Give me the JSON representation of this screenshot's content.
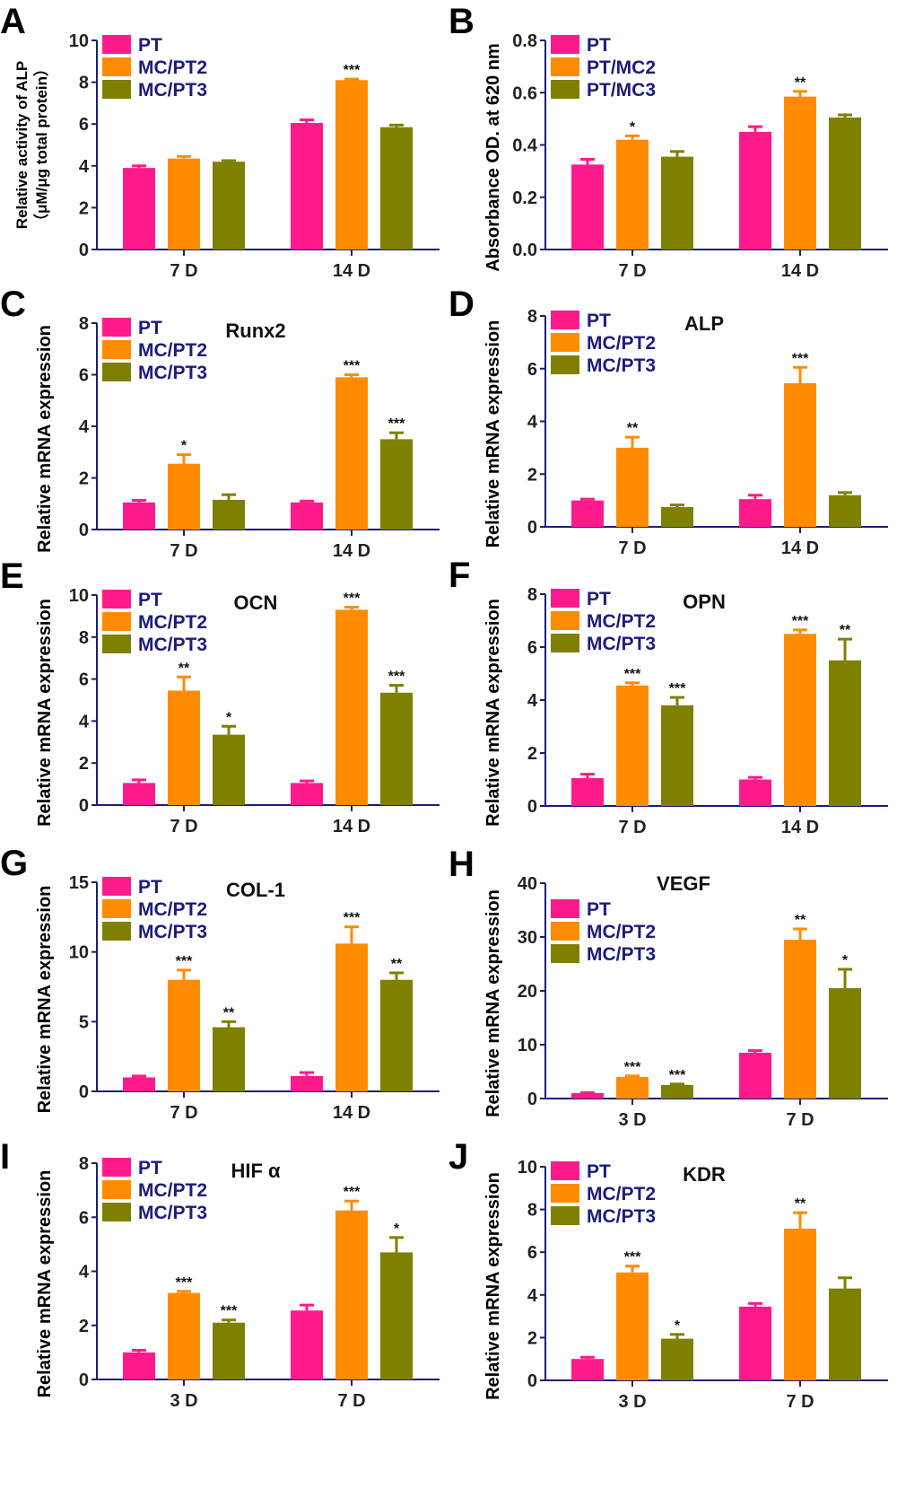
{
  "colors": {
    "PT": "#ff1a8c",
    "MC/PT2": "#ff8c00",
    "MC/PT3": "#808000",
    "axis": "#1c1c7c",
    "legend_text": "#1c1c7c"
  },
  "chart_data": [
    {
      "panel": "A",
      "type": "bar",
      "title": "",
      "ylabel": "Relative activity of ALP",
      "ylabel2": "（μM/μg total protein）",
      "ylim": [
        0,
        10
      ],
      "yticks": [
        "0",
        "2",
        "4",
        "6",
        "8",
        "10"
      ],
      "categories": [
        "7 D",
        "14 D"
      ],
      "series": [
        {
          "name": "PT",
          "values": [
            3.9,
            6.05
          ],
          "errors": [
            0.1,
            0.15
          ],
          "sig": [
            "",
            ""
          ]
        },
        {
          "name": "MC/PT2",
          "values": [
            4.35,
            8.1
          ],
          "errors": [
            0.1,
            0.05
          ],
          "sig": [
            "",
            "***"
          ]
        },
        {
          "name": "MC/PT3",
          "values": [
            4.2,
            5.85
          ],
          "errors": [
            0.05,
            0.1
          ],
          "sig": [
            "",
            ""
          ]
        }
      ],
      "legend": "top-left"
    },
    {
      "panel": "B",
      "type": "bar",
      "title": "",
      "ylabel": "Absorbance OD. at 620 nm",
      "ylim": [
        0,
        0.8
      ],
      "yticks": [
        "0.0",
        "0.2",
        "0.4",
        "0.6",
        "0.8"
      ],
      "categories": [
        "7 D",
        "14 D"
      ],
      "series": [
        {
          "name": "PT",
          "values": [
            0.325,
            0.45
          ],
          "errors": [
            0.02,
            0.02
          ],
          "sig": [
            "",
            ""
          ]
        },
        {
          "name": "PT/MC2",
          "values": [
            0.42,
            0.585
          ],
          "errors": [
            0.015,
            0.02
          ],
          "sig": [
            "*",
            "**"
          ]
        },
        {
          "name": "PT/MC3",
          "values": [
            0.355,
            0.505
          ],
          "errors": [
            0.02,
            0.01
          ],
          "sig": [
            "",
            ""
          ]
        }
      ],
      "legend": "top-left"
    },
    {
      "panel": "C",
      "type": "bar",
      "title": "Runx2",
      "ylabel": "Relative mRNA expression",
      "ylim": [
        0,
        8
      ],
      "yticks": [
        "0",
        "2",
        "4",
        "6",
        "8"
      ],
      "categories": [
        "7 D",
        "14 D"
      ],
      "series": [
        {
          "name": "PT",
          "values": [
            1.05,
            1.05
          ],
          "errors": [
            0.08,
            0.05
          ],
          "sig": [
            "",
            ""
          ]
        },
        {
          "name": "MC/PT2",
          "values": [
            2.55,
            5.9
          ],
          "errors": [
            0.35,
            0.1
          ],
          "sig": [
            "*",
            "***"
          ]
        },
        {
          "name": "MC/PT3",
          "values": [
            1.15,
            3.5
          ],
          "errors": [
            0.2,
            0.25
          ],
          "sig": [
            "",
            "***"
          ]
        }
      ],
      "legend": "top-left"
    },
    {
      "panel": "D",
      "type": "bar",
      "title": "ALP",
      "ylabel": "Relative mRNA expression",
      "ylim": [
        0,
        8
      ],
      "yticks": [
        "0",
        "2",
        "4",
        "6",
        "8"
      ],
      "categories": [
        "7 D",
        "14 D"
      ],
      "series": [
        {
          "name": "PT",
          "values": [
            1.0,
            1.05
          ],
          "errors": [
            0.05,
            0.15
          ],
          "sig": [
            "",
            ""
          ]
        },
        {
          "name": "MC/PT2",
          "values": [
            3.0,
            5.45
          ],
          "errors": [
            0.4,
            0.6
          ],
          "sig": [
            "**",
            "***"
          ]
        },
        {
          "name": "MC/PT3",
          "values": [
            0.75,
            1.2
          ],
          "errors": [
            0.08,
            0.1
          ],
          "sig": [
            "",
            ""
          ]
        }
      ],
      "legend": "top-left"
    },
    {
      "panel": "E",
      "type": "bar",
      "title": "OCN",
      "ylabel": "Relative mRNA expression",
      "ylim": [
        0,
        10
      ],
      "yticks": [
        "0",
        "2",
        "4",
        "6",
        "8",
        "10"
      ],
      "categories": [
        "7 D",
        "14 D"
      ],
      "series": [
        {
          "name": "PT",
          "values": [
            1.05,
            1.05
          ],
          "errors": [
            0.15,
            0.1
          ],
          "sig": [
            "",
            ""
          ]
        },
        {
          "name": "MC/PT2",
          "values": [
            5.45,
            9.3
          ],
          "errors": [
            0.65,
            0.12
          ],
          "sig": [
            "**",
            "***"
          ]
        },
        {
          "name": "MC/PT3",
          "values": [
            3.35,
            5.35
          ],
          "errors": [
            0.4,
            0.35
          ],
          "sig": [
            "*",
            "***"
          ]
        }
      ],
      "legend": "top-left"
    },
    {
      "panel": "F",
      "type": "bar",
      "title": "OPN",
      "ylabel": "Relative mRNA expression",
      "ylim": [
        0,
        8
      ],
      "yticks": [
        "0",
        "2",
        "4",
        "6",
        "8"
      ],
      "categories": [
        "7 D",
        "14 D"
      ],
      "series": [
        {
          "name": "PT",
          "values": [
            1.05,
            1.0
          ],
          "errors": [
            0.15,
            0.08
          ],
          "sig": [
            "",
            ""
          ]
        },
        {
          "name": "MC/PT2",
          "values": [
            4.55,
            6.5
          ],
          "errors": [
            0.1,
            0.15
          ],
          "sig": [
            "***",
            "***"
          ]
        },
        {
          "name": "MC/PT3",
          "values": [
            3.8,
            5.5
          ],
          "errors": [
            0.3,
            0.8
          ],
          "sig": [
            "***",
            "**"
          ]
        }
      ],
      "legend": "top-left"
    },
    {
      "panel": "G",
      "type": "bar",
      "title": "COL-1",
      "ylabel": "Relative mRNA expression",
      "ylim": [
        0,
        15
      ],
      "yticks": [
        "0",
        "5",
        "10",
        "15"
      ],
      "categories": [
        "7 D",
        "14 D"
      ],
      "series": [
        {
          "name": "PT",
          "values": [
            1.0,
            1.1
          ],
          "errors": [
            0.1,
            0.25
          ],
          "sig": [
            "",
            ""
          ]
        },
        {
          "name": "MC/PT2",
          "values": [
            8.0,
            10.6
          ],
          "errors": [
            0.7,
            1.2
          ],
          "sig": [
            "***",
            "***"
          ]
        },
        {
          "name": "MC/PT3",
          "values": [
            4.6,
            8.0
          ],
          "errors": [
            0.4,
            0.5
          ],
          "sig": [
            "**",
            "**"
          ]
        }
      ],
      "legend": "top-left"
    },
    {
      "panel": "H",
      "type": "bar",
      "title": "VEGF",
      "ylabel": "Relative mRNA expression",
      "ylim": [
        0,
        40
      ],
      "yticks": [
        "0",
        "10",
        "20",
        "30",
        "40"
      ],
      "categories": [
        "3 D",
        "7 D"
      ],
      "series": [
        {
          "name": "PT",
          "values": [
            1.0,
            8.5
          ],
          "errors": [
            0.1,
            0.4
          ],
          "sig": [
            "",
            ""
          ]
        },
        {
          "name": "MC/PT2",
          "values": [
            4.0,
            29.5
          ],
          "errors": [
            0.2,
            2.0
          ],
          "sig": [
            "***",
            "**"
          ]
        },
        {
          "name": "MC/PT3",
          "values": [
            2.5,
            20.5
          ],
          "errors": [
            0.2,
            3.5
          ],
          "sig": [
            "***",
            "*"
          ]
        }
      ],
      "legend": "top-left"
    },
    {
      "panel": "I",
      "type": "bar",
      "title": "HIF α",
      "ylabel": "Relative mRNA expression",
      "ylim": [
        0,
        8
      ],
      "yticks": [
        "0",
        "2",
        "4",
        "6",
        "8"
      ],
      "categories": [
        "3 D",
        "7 D"
      ],
      "series": [
        {
          "name": "PT",
          "values": [
            1.0,
            2.55
          ],
          "errors": [
            0.08,
            0.2
          ],
          "sig": [
            "",
            ""
          ]
        },
        {
          "name": "MC/PT2",
          "values": [
            3.2,
            6.25
          ],
          "errors": [
            0.06,
            0.35
          ],
          "sig": [
            "***",
            "***"
          ]
        },
        {
          "name": "MC/PT3",
          "values": [
            2.1,
            4.7
          ],
          "errors": [
            0.1,
            0.55
          ],
          "sig": [
            "***",
            "*"
          ]
        }
      ],
      "legend": "top-left"
    },
    {
      "panel": "J",
      "type": "bar",
      "title": "KDR",
      "ylabel": "Relative mRNA expression",
      "ylim": [
        0,
        10
      ],
      "yticks": [
        "0",
        "2",
        "4",
        "6",
        "8",
        "10"
      ],
      "categories": [
        "3 D",
        "7 D"
      ],
      "series": [
        {
          "name": "PT",
          "values": [
            1.0,
            3.45
          ],
          "errors": [
            0.08,
            0.15
          ],
          "sig": [
            "",
            ""
          ]
        },
        {
          "name": "MC/PT2",
          "values": [
            5.05,
            7.1
          ],
          "errors": [
            0.3,
            0.75
          ],
          "sig": [
            "***",
            "**"
          ]
        },
        {
          "name": "MC/PT3",
          "values": [
            1.95,
            4.3
          ],
          "errors": [
            0.2,
            0.5
          ],
          "sig": [
            "*",
            ""
          ]
        }
      ],
      "legend": "top-left"
    }
  ]
}
